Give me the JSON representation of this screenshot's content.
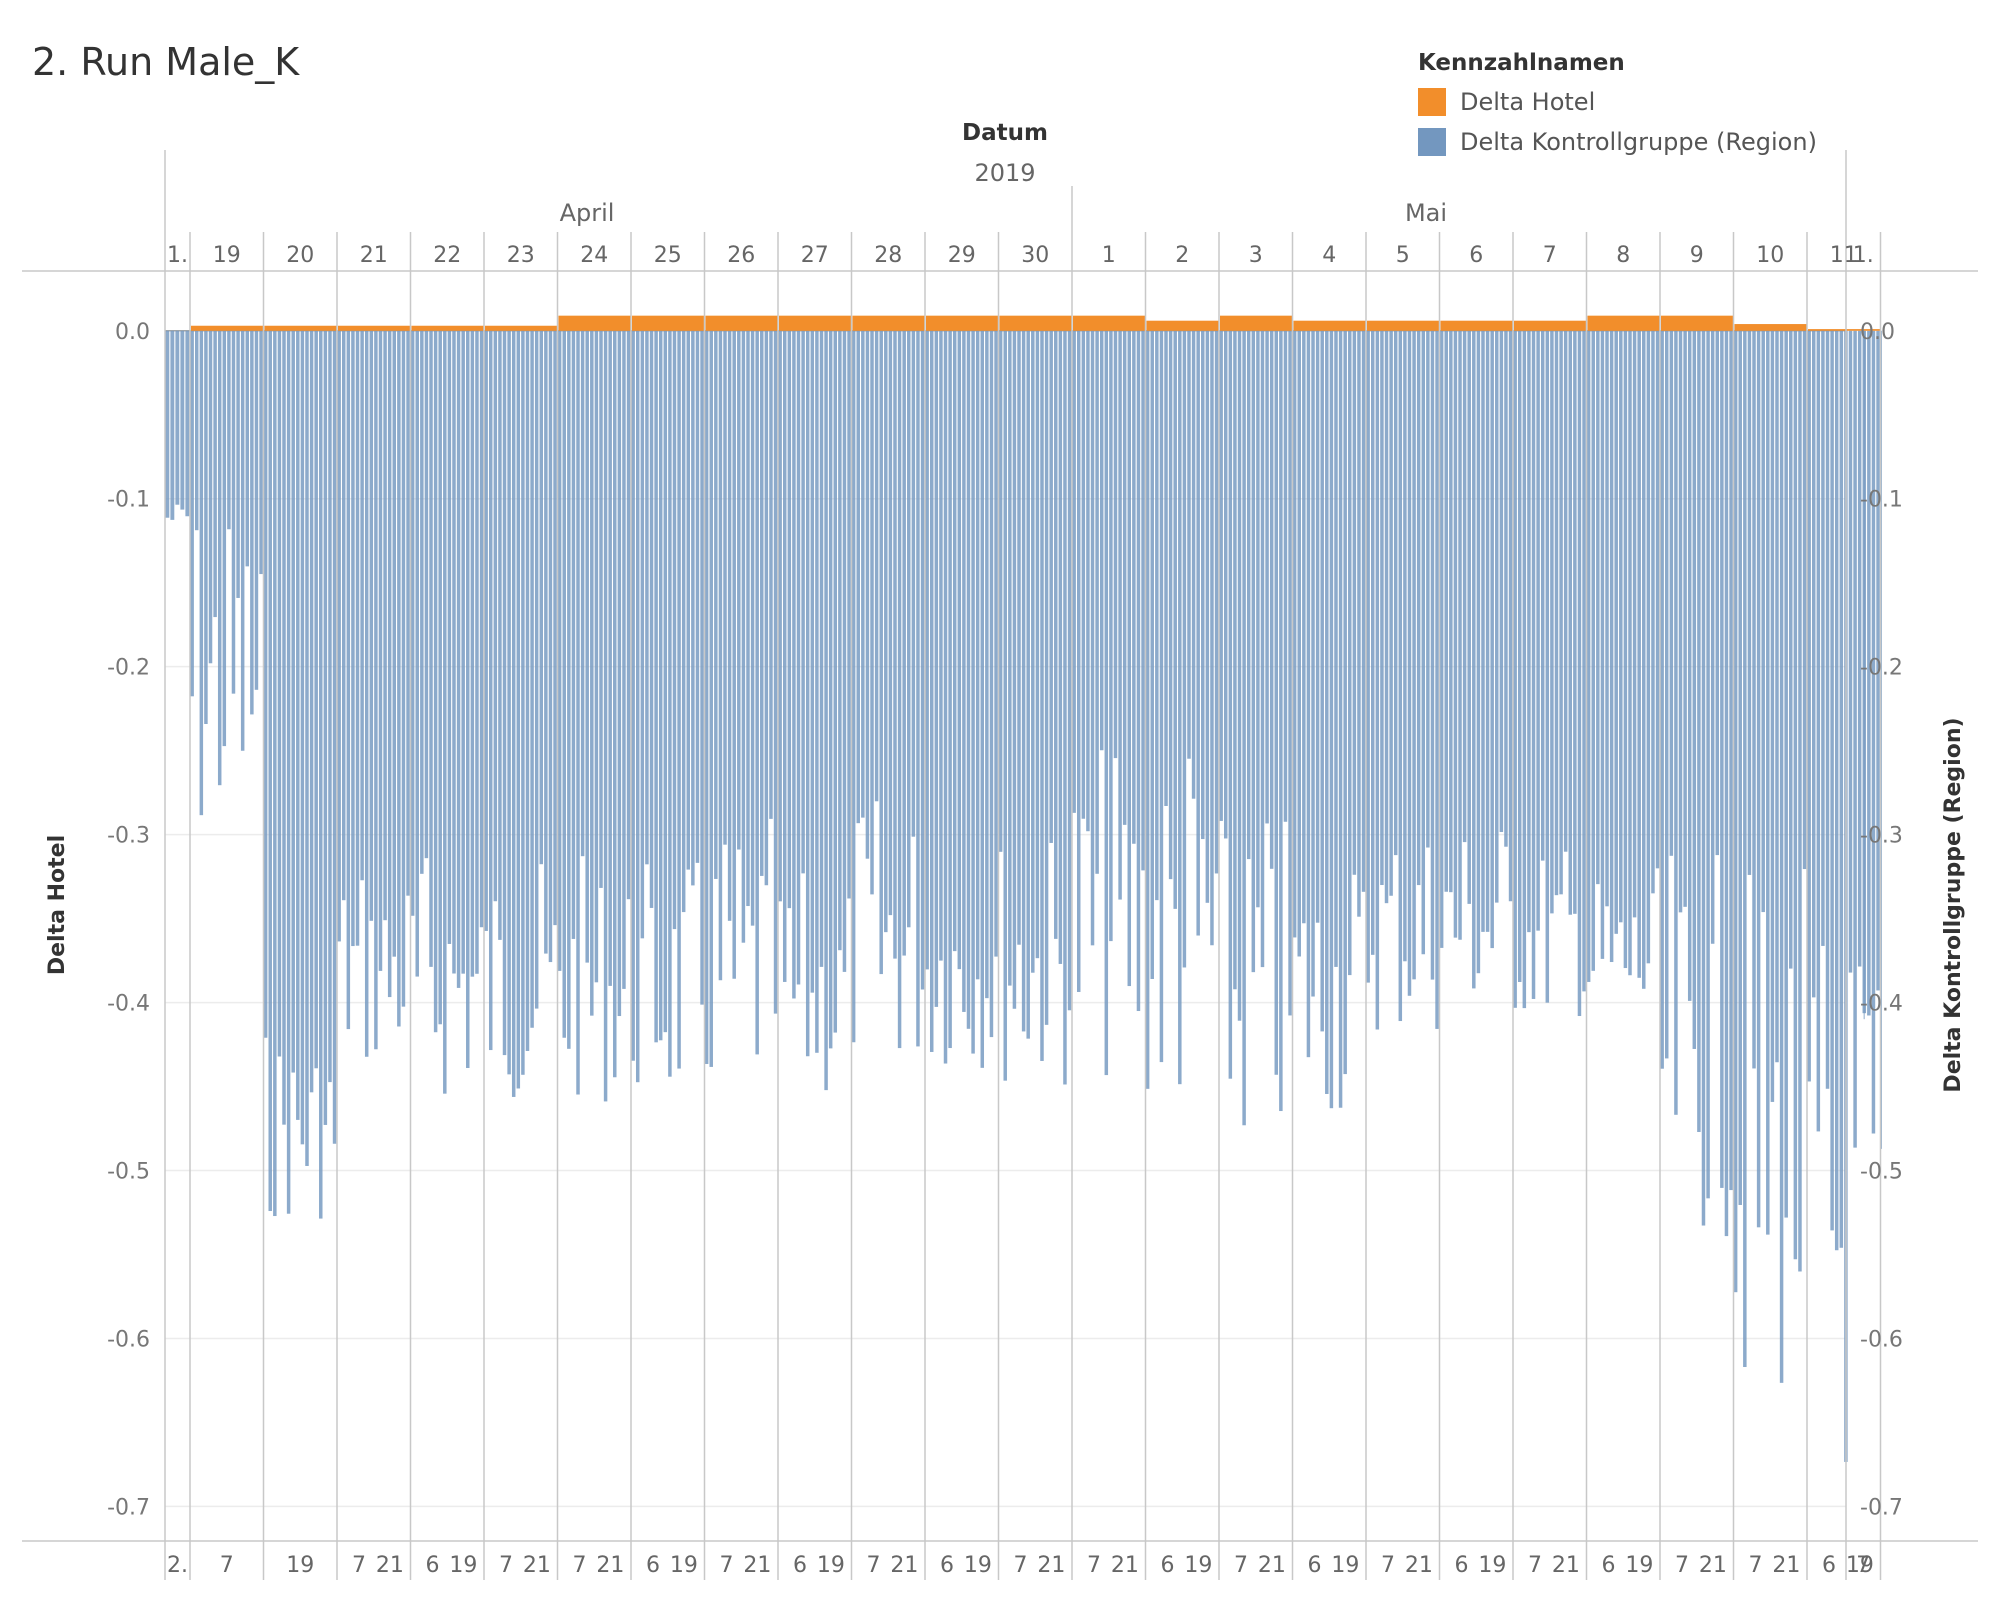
{
  "title": "2. Run Male_K",
  "legend": {
    "title": "Kennzahlnamen",
    "items": [
      {
        "label": "Delta Hotel",
        "color": "#f28e2b"
      },
      {
        "label": "Delta Kontrollgruppe (Region)",
        "color": "#7397bf"
      }
    ]
  },
  "chart_data": {
    "type": "bar",
    "title": "2. Run Male_K",
    "column_header": {
      "title": "Datum",
      "year": "2019",
      "months": [
        "April",
        "Mai"
      ]
    },
    "top_day_labels": [
      "1.",
      "19",
      "20",
      "21",
      "22",
      "23",
      "24",
      "25",
      "26",
      "27",
      "28",
      "29",
      "30",
      "1",
      "2",
      "3",
      "4",
      "5",
      "6",
      "7",
      "8",
      "9",
      "10",
      "11",
      "1."
    ],
    "bottom_hour_labels": [
      [
        "2."
      ],
      [
        "7"
      ],
      [
        "19"
      ],
      [
        "7",
        "21"
      ],
      [
        "6",
        "19"
      ],
      [
        "7",
        "21"
      ],
      [
        "7",
        "21"
      ],
      [
        "6",
        "19"
      ],
      [
        "7",
        "21"
      ],
      [
        "6",
        "19"
      ],
      [
        "7",
        "21"
      ],
      [
        "6",
        "19"
      ],
      [
        "7",
        "21"
      ],
      [
        "7",
        "21"
      ],
      [
        "6",
        "19"
      ],
      [
        "7",
        "21"
      ],
      [
        "6",
        "19"
      ],
      [
        "7",
        "21"
      ],
      [
        "6",
        "19"
      ],
      [
        "7",
        "21"
      ],
      [
        "6",
        "19"
      ],
      [
        "7",
        "21"
      ],
      [
        "7",
        "21"
      ],
      [
        "6",
        "19"
      ],
      [
        "7"
      ]
    ],
    "ylabel_left": "Delta Hotel",
    "ylabel_right": "Delta Kontrollgruppe (Region)",
    "ylim": [
      -0.72,
      0.035
    ],
    "y_ticks": [
      "0.0",
      "-0.1",
      "-0.2",
      "-0.3",
      "-0.4",
      "-0.5",
      "-0.6",
      "-0.7"
    ],
    "grid": true,
    "series": [
      {
        "name": "Delta Hotel",
        "color": "#f28e2b",
        "day_levels": [
          0.0,
          0.003,
          0.003,
          0.003,
          0.003,
          0.003,
          0.009,
          0.009,
          0.009,
          0.009,
          0.009,
          0.009,
          0.009,
          0.009,
          0.006,
          0.009,
          0.006,
          0.006,
          0.006,
          0.006,
          0.009,
          0.009,
          0.004,
          0.001,
          0.001
        ]
      },
      {
        "name": "Delta Kontrollgruppe (Region)",
        "color": "#7397bf",
        "day_ranges": [
          [
            -0.1,
            -0.12
          ],
          [
            -0.09,
            -0.31
          ],
          [
            -0.41,
            -0.53
          ],
          [
            -0.31,
            -0.44
          ],
          [
            -0.3,
            -0.46
          ],
          [
            -0.31,
            -0.46
          ],
          [
            -0.31,
            -0.46
          ],
          [
            -0.31,
            -0.46
          ],
          [
            -0.29,
            -0.46
          ],
          [
            -0.32,
            -0.46
          ],
          [
            -0.27,
            -0.44
          ],
          [
            -0.3,
            -0.44
          ],
          [
            -0.29,
            -0.45
          ],
          [
            -0.24,
            -0.45
          ],
          [
            -0.22,
            -0.47
          ],
          [
            -0.28,
            -0.49
          ],
          [
            -0.3,
            -0.47
          ],
          [
            -0.28,
            -0.42
          ],
          [
            -0.28,
            -0.41
          ],
          [
            -0.3,
            -0.41
          ],
          [
            -0.32,
            -0.42
          ],
          [
            -0.31,
            -0.54
          ],
          [
            -0.31,
            -0.64
          ],
          [
            -0.33,
            -0.69
          ],
          [
            -0.36,
            -0.67
          ]
        ]
      }
    ]
  }
}
